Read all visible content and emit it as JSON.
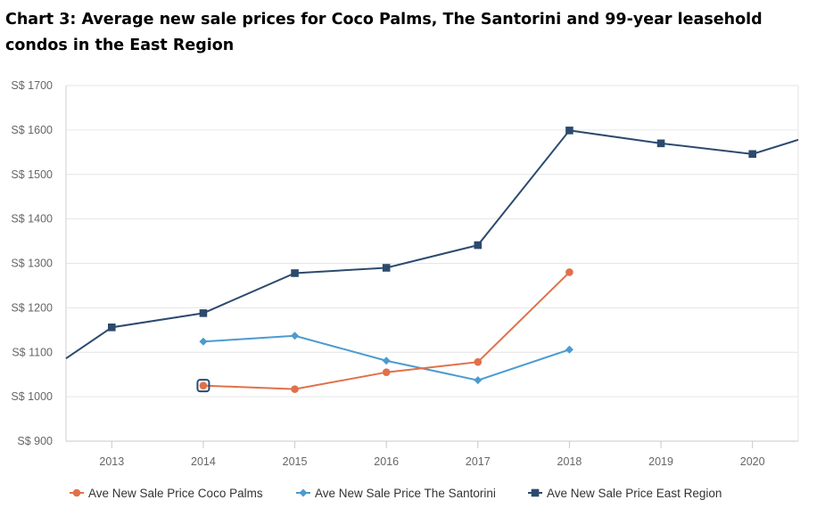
{
  "chart_data": {
    "type": "line",
    "title": "Chart 3: Average new sale prices for Coco Palms, The Santorini and 99-year leasehold condos in the East Region",
    "xlabel": "",
    "ylabel": "",
    "categories": [
      "2013",
      "2014",
      "2015",
      "2016",
      "2017",
      "2018",
      "2019",
      "2020"
    ],
    "xlim": [
      2012.5,
      2020.5
    ],
    "ylim": [
      900,
      1700
    ],
    "yticks": [
      900,
      1000,
      1100,
      1200,
      1300,
      1400,
      1500,
      1600,
      1700
    ],
    "ytick_labels": [
      "S$ 900",
      "S$ 1000",
      "S$ 1100",
      "S$ 1200",
      "S$ 1300",
      "S$ 1400",
      "S$ 1500",
      "S$ 1600",
      "S$ 1700"
    ],
    "grid": true,
    "legend_position": "bottom",
    "series": [
      {
        "name": "Ave New Sale Price Coco Palms",
        "color": "#e0714a",
        "marker": "circle",
        "points": [
          [
            2014,
            1025
          ],
          [
            2015,
            1017
          ],
          [
            2016,
            1055
          ],
          [
            2017,
            1078
          ],
          [
            2018,
            1280
          ]
        ]
      },
      {
        "name": "Ave New Sale Price The Santorini",
        "color": "#4c9bd0",
        "marker": "diamond",
        "points": [
          [
            2014,
            1124
          ],
          [
            2015,
            1137
          ],
          [
            2016,
            1081
          ],
          [
            2017,
            1037
          ],
          [
            2018,
            1106
          ]
        ]
      },
      {
        "name": "Ave New Sale Price East Region",
        "color": "#2c4a6e",
        "marker": "square",
        "points": [
          [
            2012.5,
            1086
          ],
          [
            2013,
            1156
          ],
          [
            2014,
            1188
          ],
          [
            2015,
            1278
          ],
          [
            2016,
            1290
          ],
          [
            2017,
            1341
          ],
          [
            2018,
            1599
          ],
          [
            2019,
            1570
          ],
          [
            2020,
            1546
          ],
          [
            2020.5,
            1578
          ]
        ]
      }
    ],
    "highlight": {
      "series": 0,
      "point": 0,
      "color": "#2c4a6e"
    }
  }
}
